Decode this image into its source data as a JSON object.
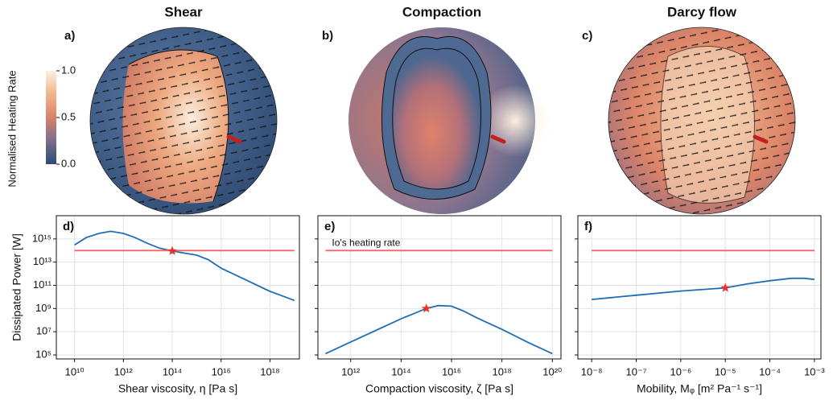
{
  "maps": [
    {
      "title": "Shear",
      "label": "a)"
    },
    {
      "title": "Compaction",
      "label": "b)"
    },
    {
      "title": "Darcy flow",
      "label": "c)"
    }
  ],
  "colorbar": {
    "label": "Normalised Heating Rate",
    "lim": [
      0,
      1
    ],
    "ticks": [
      {
        "value": 0,
        "label": "0.0"
      },
      {
        "value": 0.5,
        "label": "0.5"
      },
      {
        "value": 1,
        "label": "1.0"
      }
    ],
    "colors": [
      "#2c4a78",
      "#7a6f8a",
      "#d9826a",
      "#f0b58a",
      "#fbf1de"
    ]
  },
  "chart_data": [
    {
      "type": "line",
      "panel_label": "d)",
      "xlabel": "Shear viscosity, η [Pa s]",
      "ylabel": "Dissipated Power [W]",
      "xscale": "log",
      "yscale": "log",
      "grid": true,
      "ytick_labels": true,
      "xlim": [
        1800000000.0,
        1.6e+19
      ],
      "ylim": [
        45000,
        1e+17
      ],
      "xticks": [
        {
          "value": 10000000000.0,
          "label": "10¹⁰"
        },
        {
          "value": 1000000000000.0,
          "label": "10¹²"
        },
        {
          "value": 100000000000000.0,
          "label": "10¹⁴"
        },
        {
          "value": 1e+16,
          "label": "10¹⁶"
        },
        {
          "value": 1e+18,
          "label": "10¹⁸"
        }
      ],
      "yticks": [
        {
          "value": 100000.0,
          "label": "10⁵"
        },
        {
          "value": 10000000.0,
          "label": "10⁷"
        },
        {
          "value": 1000000000.0,
          "label": "10⁹"
        },
        {
          "value": 100000000000.0,
          "label": "10¹¹"
        },
        {
          "value": 10000000000000.0,
          "label": "10¹³"
        },
        {
          "value": 1000000000000000.0,
          "label": "10¹⁵"
        }
      ],
      "series": [
        {
          "color": "#1f6fb4",
          "x": [
            10000000000.0,
            30000000000.0,
            100000000000.0,
            300000000000.0,
            1000000000000.0,
            3000000000000.0,
            10000000000000.0,
            30000000000000.0,
            100000000000000.0,
            300000000000000.0,
            1000000000000000.0,
            3000000000000000.0,
            1e+16,
            3e+16,
            1e+17,
            3e+17,
            1e+18,
            3e+18,
            1e+19
          ],
          "values": [
            300000000000000.0,
            1300000000000000.0,
            3000000000000000.0,
            4500000000000000.0,
            3000000000000000.0,
            1300000000000000.0,
            400000000000000.0,
            160000000000000.0,
            90000000000000.0,
            60000000000000.0,
            40000000000000.0,
            16000000000000.0,
            3000000000000.0,
            1000000000000.0,
            300000000000.0,
            100000000000.0,
            30000000000.0,
            13000000000.0,
            5000000000.0
          ]
        },
        {
          "color": "#f26565",
          "x": [
            10000000000.0,
            1e+19
          ],
          "values": [
            100000000000000.0,
            100000000000000.0
          ]
        }
      ],
      "highlight": {
        "x": 100000000000000.0,
        "y": 90000000000000.0,
        "color": "#e8302a"
      }
    },
    {
      "type": "line",
      "panel_label": "e)",
      "xlabel": "Compaction viscosity, ζ [Pa s]",
      "xscale": "log",
      "yscale": "log",
      "grid": true,
      "ytick_labels": false,
      "xlim": [
        50000000000.0,
        2.2e+20
      ],
      "ylim": [
        45000,
        1e+17
      ],
      "xticks": [
        {
          "value": 1000000000000.0,
          "label": "10¹²"
        },
        {
          "value": 100000000000000.0,
          "label": "10¹⁴"
        },
        {
          "value": 1e+16,
          "label": "10¹⁶"
        },
        {
          "value": 1e+18,
          "label": "10¹⁸"
        },
        {
          "value": 1e+20,
          "label": "10²⁰"
        }
      ],
      "yticks": [
        100000.0,
        10000000.0,
        1000000000.0,
        100000000000.0,
        10000000000000.0,
        1000000000000000.0
      ],
      "series": [
        {
          "color": "#1f6fb4",
          "x": [
            100000000000.0,
            1000000000000.0,
            10000000000000.0,
            100000000000000.0,
            1000000000000000.0,
            3000000000000000.0,
            1e+16,
            3e+16,
            1e+17,
            1e+18,
            1e+19,
            1e+20
          ],
          "values": [
            130000.0,
            1300000.0,
            13000000.0,
            130000000.0,
            1000000000.0,
            1800000000.0,
            1600000000.0,
            600000000.0,
            160000000.0,
            16000000.0,
            1300000.0,
            130000.0
          ]
        },
        {
          "color": "#f26565",
          "x": [
            100000000000.0,
            1e+20
          ],
          "values": [
            100000000000000.0,
            100000000000000.0
          ],
          "annotation": "Io's heating rate"
        }
      ],
      "highlight": {
        "x": 1000000000000000.0,
        "y": 1000000000.0,
        "color": "#e8302a"
      }
    },
    {
      "type": "line",
      "panel_label": "f)",
      "xlabel": "Mobility, Mᵩ [m² Pa⁻¹ s⁻¹]",
      "xscale": "log",
      "yscale": "log",
      "grid": true,
      "ytick_labels": false,
      "xlim": [
        4.9e-09,
        0.0014
      ],
      "ylim": [
        45000,
        1e+17
      ],
      "xticks": [
        {
          "value": 1e-08,
          "label": "10⁻⁸"
        },
        {
          "value": 1e-07,
          "label": "10⁻⁷"
        },
        {
          "value": 1e-06,
          "label": "10⁻⁶"
        },
        {
          "value": 1e-05,
          "label": "10⁻⁵"
        },
        {
          "value": 0.0001,
          "label": "10⁻⁴"
        },
        {
          "value": 0.001,
          "label": "10⁻³"
        }
      ],
      "yticks": [
        100000.0,
        10000000.0,
        1000000000.0,
        100000000000.0,
        10000000000000.0,
        1000000000000000.0
      ],
      "series": [
        {
          "color": "#1f6fb4",
          "x": [
            1e-08,
            1e-07,
            1e-06,
            1e-05,
            3e-05,
            0.0001,
            0.0003,
            0.0006,
            0.001
          ],
          "values": [
            6000000000.0,
            14000000000.0,
            32000000000.0,
            60000000000.0,
            130000000000.0,
            250000000000.0,
            400000000000.0,
            400000000000.0,
            320000000000.0
          ]
        },
        {
          "color": "#f26565",
          "x": [
            1e-08,
            0.001
          ],
          "values": [
            100000000000000.0,
            100000000000000.0
          ]
        }
      ],
      "highlight": {
        "x": 1e-05,
        "y": 60000000000.0,
        "color": "#e8302a"
      }
    }
  ]
}
